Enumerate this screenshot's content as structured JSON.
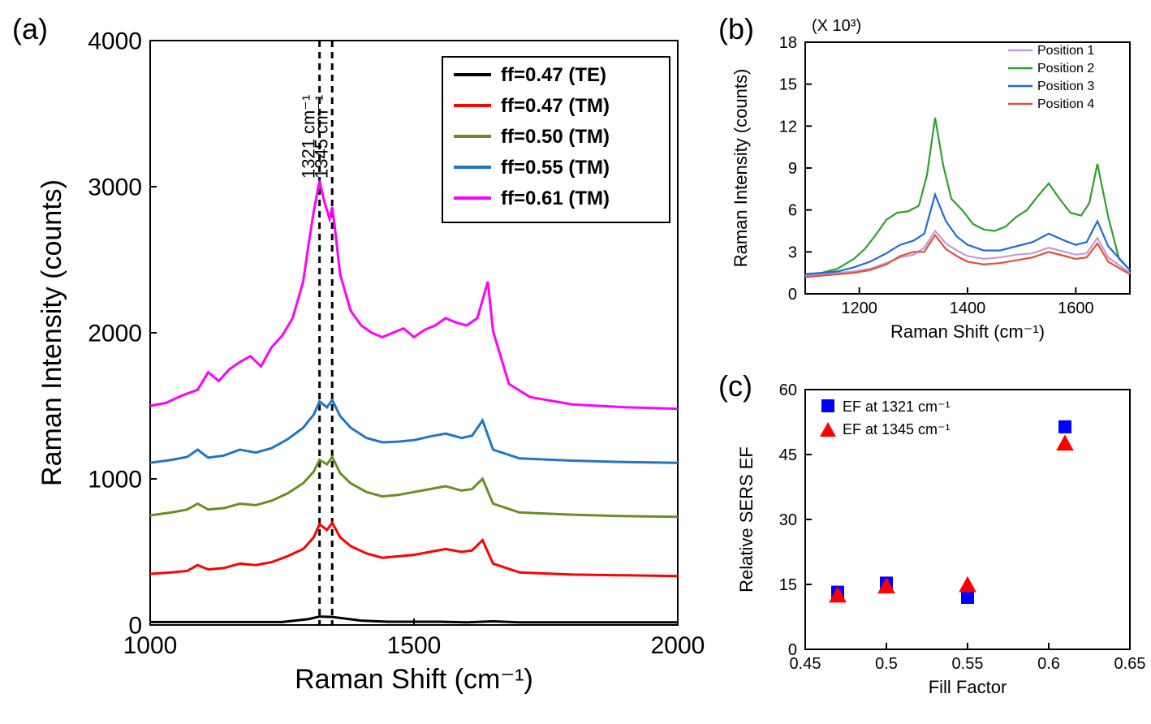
{
  "panel_a": {
    "tag": "(a)",
    "x_label": "Raman Shift (cm⁻¹)",
    "y_label": "Raman Intensity (counts)",
    "xlim": [
      1000,
      2000
    ],
    "ylim": [
      0,
      4000
    ],
    "xticks": [
      1000,
      1500,
      2000
    ],
    "yticks": [
      0,
      1000,
      2000,
      3000,
      4000
    ],
    "label_fontsize": 34,
    "tick_fontsize": 30,
    "background": "#ffffff",
    "box_color": "#000000",
    "dashed_lines": [
      1321,
      1345
    ],
    "dashed_labels": [
      "1321 cm⁻¹",
      "1345 cm⁻¹"
    ],
    "series": [
      {
        "name": "ff=0.47 (TE)",
        "color": "#000000",
        "legend": "ff=0.47 (TE)",
        "x": [
          1000,
          1050,
          1100,
          1150,
          1200,
          1250,
          1300,
          1321,
          1345,
          1400,
          1450,
          1500,
          1550,
          1600,
          1650,
          1700,
          1800,
          1900,
          2000
        ],
        "y": [
          20,
          20,
          20,
          20,
          20,
          20,
          40,
          58,
          55,
          30,
          22,
          22,
          22,
          18,
          25,
          18,
          18,
          18,
          18
        ]
      },
      {
        "name": "ff=0.47 (TM)",
        "color": "#ff0000",
        "legend": "ff=0.47 (TM)",
        "x": [
          1000,
          1040,
          1070,
          1090,
          1110,
          1140,
          1170,
          1200,
          1230,
          1260,
          1290,
          1310,
          1321,
          1335,
          1345,
          1360,
          1380,
          1410,
          1440,
          1470,
          1500,
          1530,
          1560,
          1590,
          1610,
          1630,
          1650,
          1700,
          1800,
          1900,
          2000
        ],
        "y": [
          350,
          360,
          370,
          410,
          380,
          390,
          420,
          410,
          430,
          470,
          520,
          600,
          690,
          650,
          700,
          600,
          540,
          490,
          460,
          470,
          480,
          500,
          520,
          500,
          510,
          580,
          420,
          360,
          345,
          340,
          335
        ]
      },
      {
        "name": "ff=0.50 (TM)",
        "color": "#6b8e23",
        "legend": "ff=0.50 (TM)",
        "x": [
          1000,
          1040,
          1070,
          1090,
          1110,
          1140,
          1170,
          1200,
          1230,
          1260,
          1290,
          1310,
          1321,
          1335,
          1345,
          1360,
          1380,
          1410,
          1440,
          1470,
          1500,
          1530,
          1560,
          1590,
          1610,
          1630,
          1650,
          1700,
          1800,
          1900,
          2000
        ],
        "y": [
          750,
          770,
          790,
          830,
          790,
          800,
          830,
          820,
          850,
          900,
          970,
          1050,
          1130,
          1100,
          1150,
          1040,
          970,
          910,
          880,
          890,
          910,
          930,
          950,
          920,
          930,
          1000,
          830,
          770,
          755,
          745,
          740
        ]
      },
      {
        "name": "ff=0.55 (TM)",
        "color": "#1f77c4",
        "legend": "ff=0.55 (TM)",
        "x": [
          1000,
          1040,
          1070,
          1090,
          1110,
          1140,
          1170,
          1200,
          1230,
          1260,
          1290,
          1310,
          1321,
          1335,
          1345,
          1360,
          1380,
          1410,
          1440,
          1470,
          1500,
          1530,
          1560,
          1590,
          1610,
          1630,
          1650,
          1700,
          1800,
          1900,
          2000
        ],
        "y": [
          1110,
          1130,
          1150,
          1200,
          1145,
          1160,
          1200,
          1180,
          1210,
          1270,
          1350,
          1440,
          1530,
          1490,
          1540,
          1430,
          1350,
          1280,
          1250,
          1255,
          1265,
          1290,
          1310,
          1280,
          1295,
          1400,
          1200,
          1140,
          1125,
          1115,
          1110
        ]
      },
      {
        "name": "ff=0.61 (TM)",
        "color": "#ff00ff",
        "legend": "ff=0.61 (TM)",
        "x": [
          1000,
          1030,
          1060,
          1090,
          1110,
          1130,
          1150,
          1170,
          1190,
          1210,
          1230,
          1250,
          1270,
          1290,
          1300,
          1310,
          1321,
          1330,
          1340,
          1345,
          1350,
          1360,
          1380,
          1400,
          1420,
          1440,
          1460,
          1480,
          1500,
          1520,
          1540,
          1560,
          1580,
          1600,
          1620,
          1640,
          1650,
          1680,
          1720,
          1800,
          1900,
          2000
        ],
        "y": [
          1500,
          1520,
          1570,
          1610,
          1730,
          1670,
          1750,
          1800,
          1840,
          1770,
          1900,
          1980,
          2100,
          2350,
          2600,
          2830,
          3040,
          2900,
          2780,
          2860,
          2720,
          2400,
          2150,
          2050,
          2000,
          1970,
          2000,
          2030,
          1970,
          2020,
          2050,
          2100,
          2070,
          2050,
          2100,
          2350,
          2010,
          1650,
          1560,
          1510,
          1490,
          1480
        ]
      }
    ]
  },
  "panel_b": {
    "tag": "(b)",
    "x_label": "Raman Shift (cm⁻¹)",
    "y_label": "Raman Intensity (counts)",
    "y_multiplier": "(X 10³)",
    "xlim": [
      1100,
      1700
    ],
    "ylim": [
      0,
      18
    ],
    "xticks": [
      1200,
      1400,
      1600
    ],
    "yticks": [
      0,
      3,
      6,
      9,
      12,
      15,
      18
    ],
    "label_fontsize": 22,
    "tick_fontsize": 20,
    "background": "#ffffff",
    "box_color": "#000000",
    "series": [
      {
        "name": "Position 1",
        "color": "#c29bd6",
        "legend": "Position 1",
        "x": [
          1100,
          1130,
          1160,
          1190,
          1220,
          1250,
          1275,
          1300,
          1320,
          1340,
          1360,
          1380,
          1400,
          1430,
          1460,
          1490,
          1520,
          1550,
          1580,
          1600,
          1620,
          1640,
          1660,
          1700
        ],
        "y": [
          1.3,
          1.4,
          1.5,
          1.6,
          1.8,
          2.2,
          2.6,
          2.8,
          3.3,
          4.5,
          3.6,
          3.1,
          2.7,
          2.5,
          2.6,
          2.8,
          2.9,
          3.3,
          3.0,
          2.8,
          2.9,
          4.0,
          2.6,
          1.5
        ]
      },
      {
        "name": "Position 2",
        "color": "#2ca02c",
        "legend": "Position 2",
        "x": [
          1100,
          1130,
          1160,
          1190,
          1210,
          1230,
          1250,
          1270,
          1290,
          1310,
          1325,
          1340,
          1355,
          1370,
          1390,
          1410,
          1430,
          1450,
          1470,
          1490,
          1510,
          1530,
          1550,
          1570,
          1590,
          1610,
          1625,
          1640,
          1660,
          1680,
          1700
        ],
        "y": [
          1.4,
          1.5,
          1.8,
          2.5,
          3.2,
          4.2,
          5.3,
          5.8,
          5.9,
          6.3,
          8.5,
          12.6,
          9.2,
          6.8,
          6.0,
          5.0,
          4.6,
          4.5,
          4.8,
          5.5,
          6.0,
          7.0,
          7.9,
          6.8,
          5.8,
          5.6,
          6.5,
          9.3,
          5.5,
          2.5,
          1.7
        ]
      },
      {
        "name": "Position 3",
        "color": "#1f6bd6",
        "legend": "Position 3",
        "x": [
          1100,
          1130,
          1160,
          1190,
          1220,
          1250,
          1275,
          1300,
          1320,
          1340,
          1360,
          1380,
          1400,
          1430,
          1460,
          1490,
          1520,
          1550,
          1580,
          1600,
          1620,
          1640,
          1660,
          1700
        ],
        "y": [
          1.4,
          1.5,
          1.6,
          1.9,
          2.3,
          2.9,
          3.5,
          3.8,
          4.3,
          7.1,
          5.2,
          4.1,
          3.5,
          3.1,
          3.1,
          3.4,
          3.7,
          4.3,
          3.8,
          3.5,
          3.7,
          5.2,
          3.4,
          1.7
        ]
      },
      {
        "name": "Position 4",
        "color": "#e74c3c",
        "legend": "Position 4",
        "x": [
          1100,
          1130,
          1160,
          1190,
          1220,
          1250,
          1275,
          1300,
          1320,
          1340,
          1360,
          1380,
          1400,
          1430,
          1460,
          1490,
          1520,
          1550,
          1580,
          1600,
          1620,
          1640,
          1660,
          1700
        ],
        "y": [
          1.2,
          1.3,
          1.4,
          1.5,
          1.7,
          2.1,
          2.7,
          3.0,
          3.0,
          4.2,
          3.2,
          2.7,
          2.3,
          2.1,
          2.2,
          2.4,
          2.6,
          3.0,
          2.7,
          2.5,
          2.6,
          3.6,
          2.3,
          1.4
        ]
      }
    ]
  },
  "panel_c": {
    "tag": "(c)",
    "x_label": "Fill Factor",
    "y_label": "Relative SERS EF",
    "xlim": [
      0.45,
      0.65
    ],
    "ylim": [
      0,
      60
    ],
    "xticks": [
      0.45,
      0.5,
      0.55,
      0.6,
      0.65
    ],
    "yticks": [
      0,
      15,
      30,
      45,
      60
    ],
    "label_fontsize": 22,
    "tick_fontsize": 20,
    "background": "#ffffff",
    "box_color": "#000000",
    "series": [
      {
        "name": "EF at 1321 cm⁻¹",
        "legend": "EF at 1321 cm⁻¹",
        "marker": "square",
        "color": "#0000ff",
        "size": 16,
        "x": [
          0.47,
          0.5,
          0.55,
          0.61
        ],
        "y": [
          13.2,
          15.3,
          12.0,
          51.4
        ]
      },
      {
        "name": "EF at 1345 cm⁻¹",
        "legend": "EF at 1345 cm⁻¹",
        "marker": "triangle",
        "color": "#ff0000",
        "size": 18,
        "x": [
          0.47,
          0.5,
          0.55,
          0.61
        ],
        "y": [
          12.5,
          14.6,
          14.9,
          47.6
        ]
      }
    ]
  }
}
